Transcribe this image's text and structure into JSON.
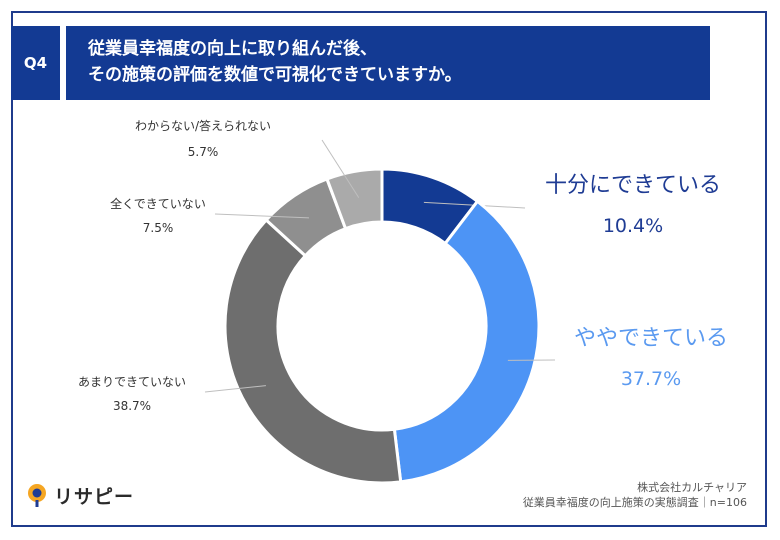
{
  "header": {
    "badge": "Q4",
    "title_line1": "従業員幸福度の向上に取り組んだ後、",
    "title_line2": "その施策の評価を数値で可視化できていますか。"
  },
  "chart_data": {
    "type": "pie",
    "subtype": "donut",
    "title": "従業員幸福度の向上に取り組んだ後、その施策の評価を数値で可視化できていますか。",
    "n": 106,
    "slices": [
      {
        "label": "十分にできている",
        "value": 10.4,
        "value_label": "10.4%",
        "color": "#133a93",
        "label_color": "#1f3c94"
      },
      {
        "label": "ややできている",
        "value": 37.7,
        "value_label": "37.7%",
        "color": "#4d94f5",
        "label_color": "#5b9af0"
      },
      {
        "label": "あまりできていない",
        "value": 38.7,
        "value_label": "38.7%",
        "color": "#6e6e6e",
        "label_color": "#333333"
      },
      {
        "label": "全くできていない",
        "value": 7.5,
        "value_label": "7.5%",
        "color": "#8f8f8f",
        "label_color": "#333333"
      },
      {
        "label": "わからない/答えられない",
        "value": 5.7,
        "value_label": "5.7%",
        "color": "#aaaaaa",
        "label_color": "#333333"
      }
    ]
  },
  "footer": {
    "logo_text": "リサピー",
    "source_line1": "株式会社カルチャリア",
    "source_line2": "従業員幸福度の向上施策の実態調査｜n=106"
  }
}
